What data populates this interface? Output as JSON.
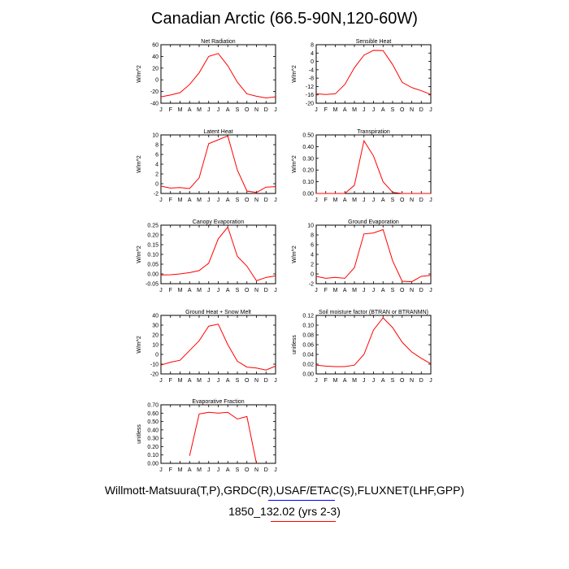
{
  "page": {
    "title": "Canadian Arctic (66.5-90N,120-60W)",
    "footer_sources": "Willmott-Matsuura(T,P),GRDC(R),USAF/ETAC(S),FLUXNET(LHF,GPP)",
    "footer_case": "1850_132.02 (yrs 2-3)"
  },
  "colors": {
    "line": "#ff0000",
    "axis": "#000000",
    "underline_blue": "#0000ff",
    "underline_red": "#ff0000"
  },
  "chart_data": [
    {
      "type": "line",
      "title": "Net Radiation",
      "ylabel": "W/m^2",
      "categories": [
        "J",
        "F",
        "M",
        "A",
        "M",
        "J",
        "J",
        "A",
        "S",
        "O",
        "N",
        "D",
        "J"
      ],
      "ylim": [
        -40,
        60
      ],
      "yticks": [
        60,
        40,
        20,
        0,
        -20,
        -40
      ],
      "values": [
        -29,
        -26,
        -22,
        -8,
        12,
        40,
        45,
        24,
        -4,
        -24,
        -28,
        -31,
        -29
      ]
    },
    {
      "type": "line",
      "title": "Sensible Heat",
      "ylabel": "W/m^2",
      "categories": [
        "J",
        "F",
        "M",
        "A",
        "M",
        "J",
        "J",
        "A",
        "S",
        "O",
        "N",
        "D",
        "J"
      ],
      "ylim": [
        -20,
        8
      ],
      "yticks": [
        8,
        4,
        0,
        -4,
        -8,
        -12,
        -16,
        -20
      ],
      "values": [
        -15.5,
        -15.8,
        -15.5,
        -11,
        -3,
        3,
        5.3,
        5.2,
        -1.5,
        -10,
        -12.5,
        -14,
        -15.8
      ]
    },
    {
      "type": "line",
      "title": "Latent Heat",
      "ylabel": "W/m^2",
      "categories": [
        "J",
        "F",
        "M",
        "A",
        "M",
        "J",
        "J",
        "A",
        "S",
        "O",
        "N",
        "D",
        "J"
      ],
      "ylim": [
        -2,
        10
      ],
      "yticks": [
        10,
        8,
        6,
        4,
        2,
        0,
        -2
      ],
      "values": [
        -0.5,
        -0.9,
        -0.8,
        -1,
        1.2,
        8.2,
        9,
        9.8,
        2.8,
        -1.5,
        -1.8,
        -0.7,
        -0.6
      ]
    },
    {
      "type": "line",
      "title": "Transpiration",
      "ylabel": "W/m^2",
      "categories": [
        "J",
        "F",
        "M",
        "A",
        "M",
        "J",
        "J",
        "A",
        "S",
        "O",
        "N",
        "D",
        "J"
      ],
      "ylim": [
        0,
        0.5
      ],
      "yticks": [
        "0.50",
        "0.40",
        "0.30",
        "0.20",
        "0.10",
        "0.00"
      ],
      "values": [
        0,
        0,
        0,
        0,
        0.07,
        0.45,
        0.32,
        0.1,
        0.01,
        0,
        0,
        0,
        0
      ]
    },
    {
      "type": "line",
      "title": "Canopy Evaporation",
      "ylabel": "W/m^2",
      "categories": [
        "J",
        "F",
        "M",
        "A",
        "M",
        "J",
        "J",
        "A",
        "S",
        "O",
        "N",
        "D",
        "J"
      ],
      "ylim": [
        -0.05,
        0.25
      ],
      "yticks": [
        "0.25",
        "0.20",
        "0.15",
        "0.10",
        "0.05",
        "0.00",
        "-0.05"
      ],
      "values": [
        -0.005,
        -0.004,
        0,
        0.007,
        0.017,
        0.055,
        0.18,
        0.24,
        0.09,
        0.04,
        -0.035,
        -0.018,
        -0.01
      ]
    },
    {
      "type": "line",
      "title": "Ground Evaporation",
      "ylabel": "W/m^2",
      "categories": [
        "J",
        "F",
        "M",
        "A",
        "M",
        "J",
        "J",
        "A",
        "S",
        "O",
        "N",
        "D",
        "J"
      ],
      "ylim": [
        -2,
        10
      ],
      "yticks": [
        10,
        8,
        6,
        4,
        2,
        0,
        -2
      ],
      "values": [
        -0.5,
        -0.9,
        -0.7,
        -0.9,
        1.3,
        8.2,
        8.4,
        9.1,
        2.7,
        -1.5,
        -1.6,
        -0.5,
        -0.3
      ]
    },
    {
      "type": "line",
      "title": "Ground Heat + Snow Melt",
      "ylabel": "W/m^2",
      "categories": [
        "J",
        "F",
        "M",
        "A",
        "M",
        "J",
        "J",
        "A",
        "S",
        "O",
        "N",
        "D",
        "J"
      ],
      "ylim": [
        -20,
        40
      ],
      "yticks": [
        40,
        30,
        20,
        10,
        0,
        -10,
        -20
      ],
      "values": [
        -11,
        -8,
        -6,
        4,
        14,
        29,
        31,
        10,
        -7,
        -13,
        -14,
        -16,
        -12
      ]
    },
    {
      "type": "line",
      "title": "Soil moisture factor (BTRAN or BTRANMN)",
      "ylabel": "unitless",
      "categories": [
        "J",
        "F",
        "M",
        "A",
        "M",
        "J",
        "J",
        "A",
        "S",
        "O",
        "N",
        "D",
        "J"
      ],
      "ylim": [
        0,
        0.12
      ],
      "yticks": [
        "0.12",
        "0.10",
        "0.08",
        "0.06",
        "0.04",
        "0.02",
        "0.00"
      ],
      "values": [
        0.018,
        0.016,
        0.015,
        0.015,
        0.018,
        0.04,
        0.09,
        0.115,
        0.095,
        0.065,
        0.045,
        0.032,
        0.021
      ]
    },
    {
      "type": "line",
      "title": "Evaporative Fraction",
      "ylabel": "unitless",
      "categories": [
        "J",
        "F",
        "M",
        "A",
        "M",
        "J",
        "J",
        "A",
        "S",
        "O",
        "N",
        "D",
        "J"
      ],
      "ylim": [
        0,
        0.7
      ],
      "yticks": [
        "0.70",
        "0.60",
        "0.50",
        "0.40",
        "0.30",
        "0.20",
        "0.10",
        "0.00"
      ],
      "values": [
        null,
        null,
        null,
        0.09,
        0.59,
        0.61,
        0.6,
        0.61,
        0.53,
        0.56,
        0,
        null,
        null
      ]
    }
  ]
}
